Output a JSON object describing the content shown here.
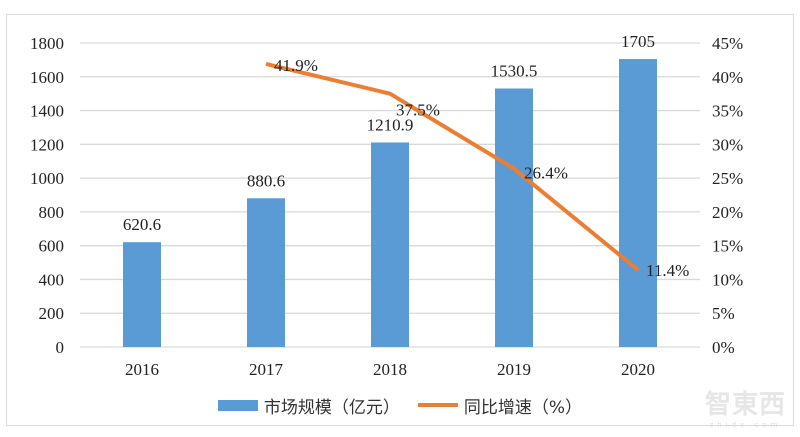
{
  "chart_data": {
    "type": "bar+line",
    "title": "",
    "categories": [
      "2016",
      "2017",
      "2018",
      "2019",
      "2020"
    ],
    "series": [
      {
        "name": "市场规模（亿元）",
        "type": "bar",
        "axis": "left",
        "color": "#5b9bd5",
        "values": [
          620.6,
          880.6,
          1210.9,
          1530.5,
          1705
        ],
        "labels": [
          "620.6",
          "880.6",
          "1210.9",
          "1530.5",
          "1705"
        ]
      },
      {
        "name": "同比增速（%）",
        "type": "line",
        "axis": "right",
        "color": "#ed7d31",
        "values": [
          null,
          41.9,
          37.5,
          26.4,
          11.4
        ],
        "labels": [
          "",
          "41.9%",
          "37.5%",
          "26.4%",
          "11.4%"
        ]
      }
    ],
    "y_left": {
      "ylim": [
        0,
        1800
      ],
      "ticks": [
        "0",
        "200",
        "400",
        "600",
        "800",
        "1000",
        "1200",
        "1400",
        "1600",
        "1800"
      ]
    },
    "y_right": {
      "ylim": [
        0,
        45
      ],
      "ticks": [
        "0%",
        "5%",
        "10%",
        "15%",
        "20%",
        "25%",
        "30%",
        "35%",
        "40%",
        "45%"
      ]
    },
    "xlabel": "",
    "ylabel": "",
    "grid": true,
    "legend_position": "bottom"
  },
  "legend": {
    "bar_label": "市场规模（亿元）",
    "line_label": "同比增速（%）"
  },
  "watermark": {
    "text": "智東西",
    "sub": "zhidx.com"
  }
}
